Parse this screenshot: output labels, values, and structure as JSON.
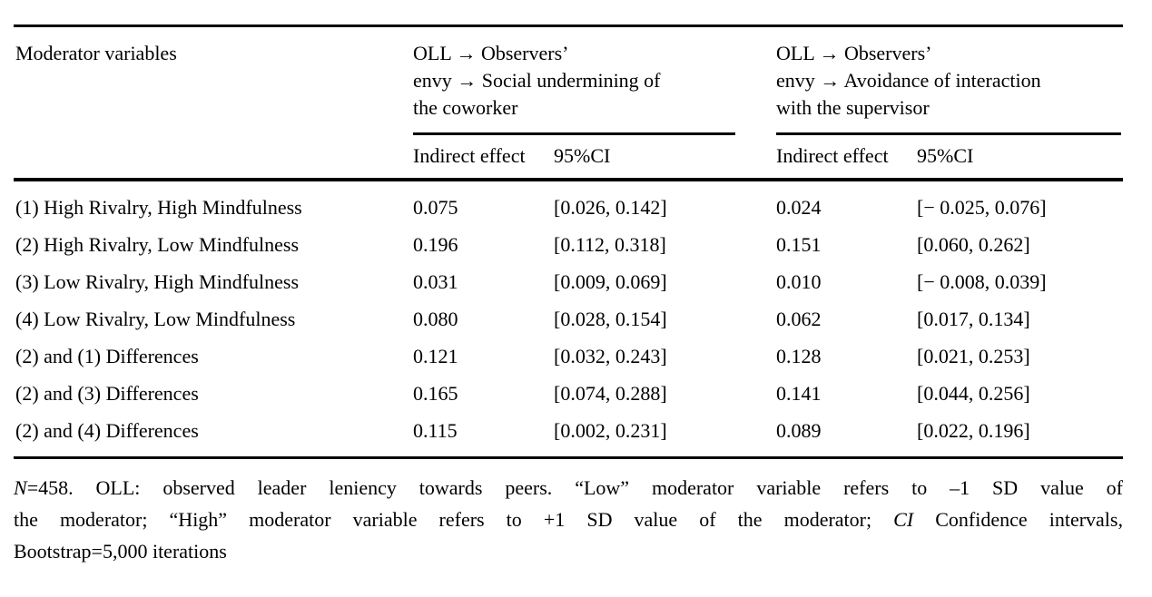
{
  "table": {
    "col1_header": "Moderator variables",
    "groups": [
      {
        "title": "OLL → Observers’\nenvy → Social undermining of\nthe coworker",
        "sub_indirect": "Indirect effect",
        "sub_ci": "95%CI"
      },
      {
        "title": "OLL → Observers’\nenvy → Avoidance of interaction\nwith the supervisor",
        "sub_indirect": "Indirect effect",
        "sub_ci": "95%CI"
      }
    ],
    "rows": [
      {
        "label": "(1) High Rivalry, High Mindfulness",
        "ie1": "0.075",
        "ci1": "[0.026, 0.142]",
        "ie2": "0.024",
        "ci2": "[− 0.025, 0.076]"
      },
      {
        "label": "(2) High Rivalry, Low Mindfulness",
        "ie1": "0.196",
        "ci1": "[0.112, 0.318]",
        "ie2": "0.151",
        "ci2": "[0.060, 0.262]"
      },
      {
        "label": "(3) Low Rivalry, High Mindfulness",
        "ie1": "0.031",
        "ci1": "[0.009, 0.069]",
        "ie2": "0.010",
        "ci2": "[− 0.008, 0.039]"
      },
      {
        "label": "(4) Low Rivalry, Low Mindfulness",
        "ie1": "0.080",
        "ci1": "[0.028, 0.154]",
        "ie2": "0.062",
        "ci2": "[0.017, 0.134]"
      },
      {
        "label": "(2) and (1) Differences",
        "ie1": "0.121",
        "ci1": "[0.032, 0.243]",
        "ie2": "0.128",
        "ci2": "[0.021, 0.253]"
      },
      {
        "label": "(2) and (3) Differences",
        "ie1": "0.165",
        "ci1": "[0.074, 0.288]",
        "ie2": "0.141",
        "ci2": "[0.044, 0.256]"
      },
      {
        "label": "(2) and (4) Differences",
        "ie1": "0.115",
        "ci1": "[0.002, 0.231]",
        "ie2": "0.089",
        "ci2": "[0.022, 0.196]"
      }
    ]
  },
  "footnote": {
    "line1_italic": "N",
    "line1_rest": "=458. OLL: observed leader leniency towards peers. “Low” moderator variable refers to –1 SD value of",
    "line2_pre": "the moderator; “High” moderator variable refers to +1 SD value of the moderator; ",
    "line2_italic": "CI",
    "line2_post": " Confidence intervals,",
    "line3": "Bootstrap=5,000 iterations"
  }
}
